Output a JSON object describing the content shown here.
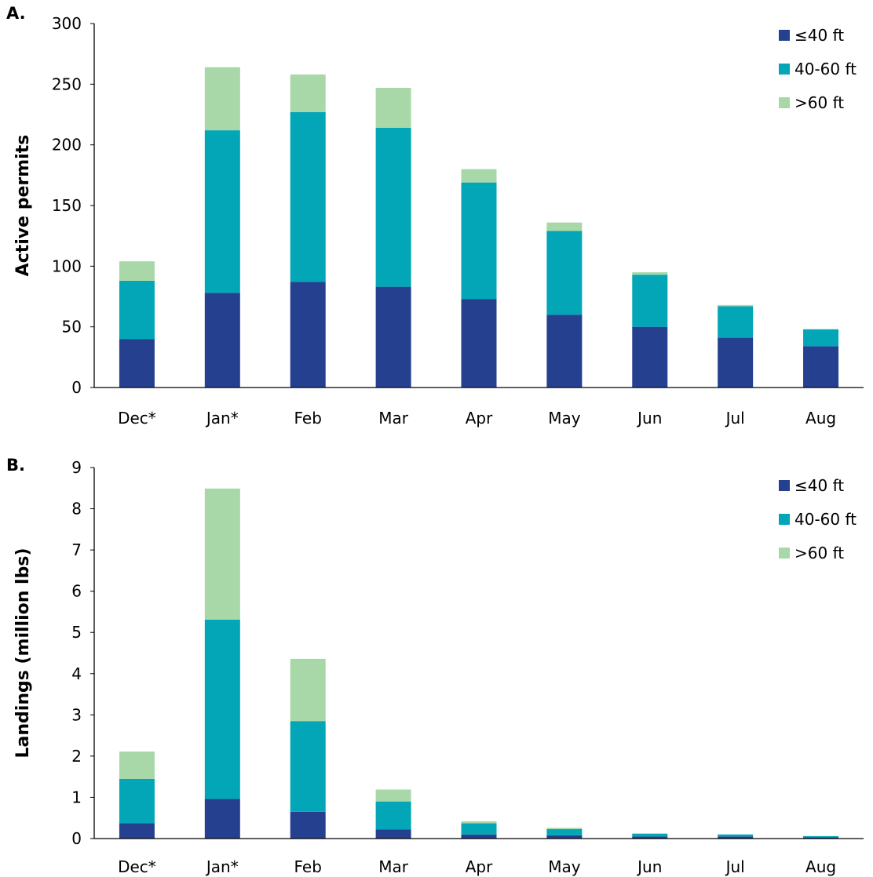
{
  "colors": {
    "le40": "#25408f",
    "mid": "#03a6b7",
    "gt60": "#a8d8a7",
    "axis": "#000000"
  },
  "legend_placement": "top-right",
  "chart_data": [
    {
      "panel_label": "A.",
      "type": "bar",
      "stacked": true,
      "categories": [
        "Dec*",
        "Jan*",
        "Feb",
        "Mar",
        "Apr",
        "May",
        "Jun",
        "Jul",
        "Aug"
      ],
      "ylabel": "Active permits",
      "xlabel": "",
      "ylim": [
        0,
        300
      ],
      "yticks": [
        0,
        50,
        100,
        150,
        200,
        250,
        300
      ],
      "ytick_labels": [
        "0",
        "50",
        "100",
        "150",
        "200",
        "250",
        "300"
      ],
      "grid": false,
      "series": [
        {
          "name": "≤40 ft",
          "color": "#25408f",
          "values": [
            40,
            78,
            87,
            83,
            73,
            60,
            50,
            41,
            34
          ]
        },
        {
          "name": "40-60 ft",
          "color": "#03a6b7",
          "values": [
            48,
            134,
            140,
            131,
            96,
            69,
            43,
            26,
            14
          ]
        },
        {
          "name": ">60 ft",
          "color": "#a8d8a7",
          "values": [
            16,
            52,
            31,
            33,
            11,
            7,
            2,
            1,
            0
          ]
        }
      ]
    },
    {
      "panel_label": "B.",
      "type": "bar",
      "stacked": true,
      "categories": [
        "Dec*",
        "Jan*",
        "Feb",
        "Mar",
        "Apr",
        "May",
        "Jun",
        "Jul",
        "Aug"
      ],
      "ylabel": "Landings (million lbs)",
      "xlabel": "",
      "ylim": [
        0,
        9
      ],
      "yticks": [
        0,
        1,
        2,
        3,
        4,
        5,
        6,
        7,
        8,
        9
      ],
      "ytick_labels": [
        "0",
        "1",
        "2",
        "3",
        "4",
        "5",
        "6",
        "7",
        "8",
        "9"
      ],
      "grid": false,
      "series": [
        {
          "name": "≤40 ft",
          "color": "#25408f",
          "values": [
            0.37,
            0.96,
            0.65,
            0.22,
            0.1,
            0.08,
            0.05,
            0.05,
            0.03
          ]
        },
        {
          "name": "40-60 ft",
          "color": "#03a6b7",
          "values": [
            1.08,
            4.35,
            2.2,
            0.68,
            0.27,
            0.15,
            0.07,
            0.05,
            0.03
          ]
        },
        {
          "name": ">60 ft",
          "color": "#a8d8a7",
          "values": [
            0.66,
            3.18,
            1.51,
            0.29,
            0.05,
            0.03,
            0.0,
            0.0,
            0.0
          ]
        }
      ]
    }
  ]
}
